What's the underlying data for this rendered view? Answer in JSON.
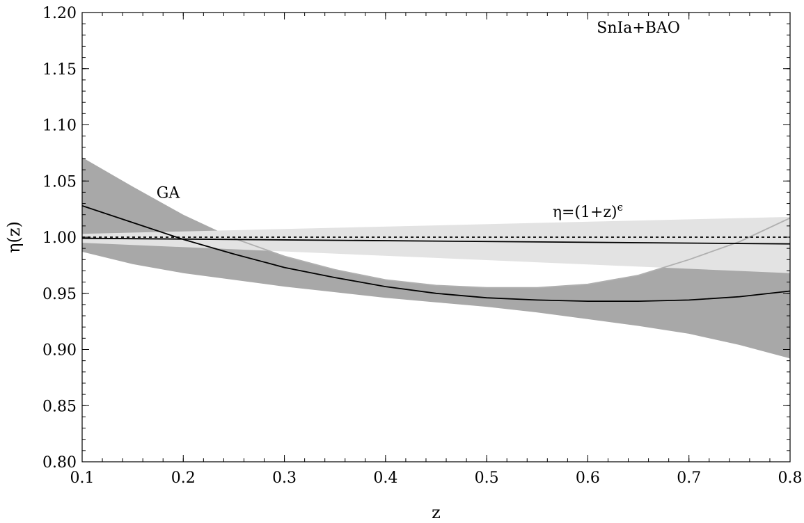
{
  "chart_data": {
    "type": "line",
    "title": "",
    "xlabel": "z",
    "ylabel": "η(z)",
    "xlim": [
      0.1,
      0.8
    ],
    "ylim": [
      0.8,
      1.2
    ],
    "x_ticks": [
      0.1,
      0.2,
      0.3,
      0.4,
      0.5,
      0.6,
      0.7,
      0.8
    ],
    "x_tick_labels": [
      "0.1",
      "0.2",
      "0.3",
      "0.4",
      "0.5",
      "0.6",
      "0.7",
      "0.8"
    ],
    "y_ticks": [
      0.8,
      0.85,
      0.9,
      0.95,
      1.0,
      1.05,
      1.1,
      1.15,
      1.2
    ],
    "y_tick_labels": [
      "0.80",
      "0.85",
      "0.90",
      "0.95",
      "1.00",
      "1.05",
      "1.10",
      "1.15",
      "1.20"
    ],
    "grid": false,
    "annotations": [
      {
        "text": "SnIa+BAO",
        "x": 0.65,
        "y": 1.182
      },
      {
        "text": "GA",
        "x": 0.185,
        "y": 1.035
      },
      {
        "text": "η=(1+z)",
        "superscript": "ϵ",
        "x": 0.6,
        "y": 1.018
      }
    ],
    "series": [
      {
        "kind": "band",
        "color": "#a8a8a8",
        "x": [
          0.1,
          0.15,
          0.2,
          0.25,
          0.3,
          0.35,
          0.4,
          0.45,
          0.5,
          0.55,
          0.6,
          0.65,
          0.7,
          0.75,
          0.8
        ],
        "upper": [
          1.071,
          1.045,
          1.02,
          0.999,
          0.983,
          0.971,
          0.962,
          0.957,
          0.955,
          0.955,
          0.958,
          0.966,
          0.98,
          0.996,
          1.017
        ],
        "lower": [
          0.987,
          0.976,
          0.968,
          0.962,
          0.956,
          0.951,
          0.946,
          0.942,
          0.938,
          0.933,
          0.927,
          0.921,
          0.914,
          0.904,
          0.892
        ]
      },
      {
        "kind": "band",
        "color": "#e3e3e3",
        "x": [
          0.1,
          0.8
        ],
        "upper": [
          1.003,
          1.018
        ],
        "lower": [
          0.995,
          0.968
        ]
      },
      {
        "kind": "line",
        "color": "#b0b0b0",
        "dash": "none",
        "x": [
          0.25,
          0.3,
          0.35,
          0.4,
          0.45,
          0.5,
          0.55,
          0.6,
          0.65,
          0.7,
          0.75,
          0.8
        ],
        "y": [
          0.999,
          0.983,
          0.971,
          0.962,
          0.957,
          0.955,
          0.955,
          0.958,
          0.966,
          0.98,
          0.996,
          1.017
        ]
      },
      {
        "kind": "line",
        "color": "#000000",
        "dash": "none",
        "x": [
          0.1,
          0.15,
          0.2,
          0.25,
          0.3,
          0.35,
          0.4,
          0.45,
          0.5,
          0.55,
          0.6,
          0.65,
          0.7,
          0.75,
          0.8
        ],
        "y": [
          1.028,
          1.013,
          0.998,
          0.985,
          0.973,
          0.964,
          0.956,
          0.95,
          0.946,
          0.944,
          0.943,
          0.943,
          0.944,
          0.947,
          0.952
        ]
      },
      {
        "kind": "line",
        "color": "#000000",
        "dash": "none",
        "x": [
          0.1,
          0.8
        ],
        "y": [
          0.999,
          0.994
        ]
      },
      {
        "kind": "line",
        "color": "#000000",
        "dash": "4,4",
        "x": [
          0.1,
          0.8
        ],
        "y": [
          1.0,
          1.0
        ]
      }
    ]
  }
}
